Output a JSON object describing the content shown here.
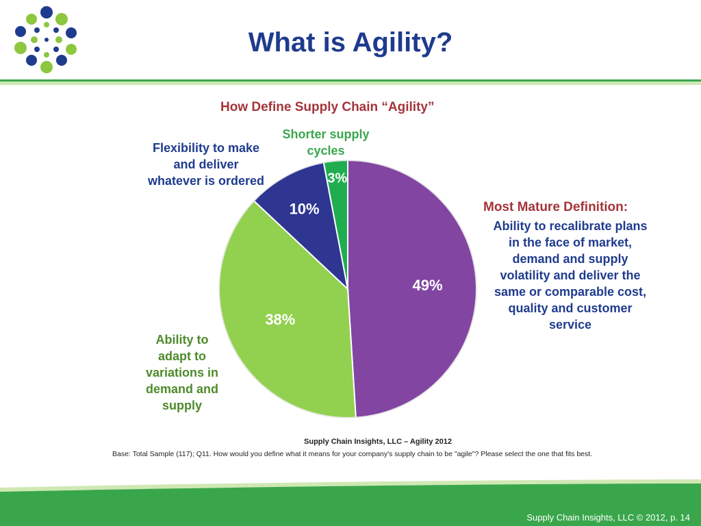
{
  "slide": {
    "title": "What is Agility?",
    "footer": "Supply Chain Insights, LLC © 2012, p. 14"
  },
  "colors": {
    "title": "#1f3b8e",
    "accent_red": "#a4343a",
    "band_green": "#3aa64c",
    "band_light": "#cfe8b4"
  },
  "chart_data": {
    "type": "pie",
    "title": "How Define Supply Chain “Agility”",
    "slices": [
      {
        "label": "Most Mature Definition:\nAbility to recalibrate plans in the face of market, demand and supply volatility and deliver the same or comparable cost, quality and customer service",
        "value": 49,
        "display": "49%",
        "color": "#8246a2"
      },
      {
        "label": "Ability to adapt to variations in demand and supply",
        "value": 38,
        "display": "38%",
        "color": "#92d050"
      },
      {
        "label": "Flexibility to make and deliver whatever is ordered",
        "value": 10,
        "display": "10%",
        "color": "#2e3692"
      },
      {
        "label": "Shorter supply cycles",
        "value": 3,
        "display": "3%",
        "color": "#1fad4f"
      }
    ],
    "source": "Supply Chain Insights, LLC – Agility 2012",
    "base_note": "Base:  Total Sample (117); Q11. How would you define what it means for your company's supply chain to be \"agile\"?  Please select the one that fits best."
  },
  "labels": {
    "flex": "Flexibility to make\nand deliver\nwhatever is ordered",
    "short": "Shorter supply\ncycles",
    "adapt": "Ability to\nadapt to\nvariations in\ndemand and\nsupply",
    "mature_head": "Most Mature Definition:",
    "mature_body": "Ability to recalibrate plans\nin the face of market,\ndemand and supply\nvolatility and deliver the\nsame or comparable cost,\nquality and customer\nservice"
  }
}
